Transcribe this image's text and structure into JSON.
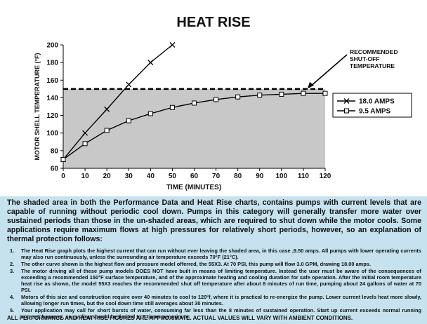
{
  "chart_data": {
    "type": "line",
    "title": "HEAT RISE",
    "xlabel": "TIME (MINUTES)",
    "ylabel": "MOTOR SHELL TEMPERATURE (°F)",
    "xlim": [
      0,
      120
    ],
    "ylim": [
      60,
      200
    ],
    "x_ticks": [
      "0",
      "10",
      "20",
      "30",
      "40",
      "50",
      "60",
      "70",
      "80",
      "90",
      "100",
      "110",
      "120"
    ],
    "y_ticks": [
      "60",
      "80",
      "100",
      "120",
      "140",
      "160",
      "180",
      "200"
    ],
    "legend_position": "right",
    "shaded_below": 150,
    "shade_color": "#c8c8c8",
    "series": [
      {
        "name": "18.0 AMPS",
        "marker": "x",
        "x": [
          0,
          10,
          20,
          30,
          40,
          50
        ],
        "y": [
          70,
          100,
          127,
          155,
          180,
          200
        ]
      },
      {
        "name": "9.5 AMPS",
        "marker": "square",
        "x": [
          0,
          10,
          20,
          30,
          40,
          50,
          60,
          70,
          80,
          90,
          100,
          110,
          120
        ],
        "y": [
          70,
          88,
          103,
          114,
          122,
          129,
          134,
          138,
          141,
          143,
          144,
          145,
          145
        ]
      }
    ],
    "reference_line": {
      "value": 150,
      "label": "RECOMMENDED SHUT-OFF TEMPERATURE",
      "label_lines": [
        "RECOMMENDED",
        "SHUT-OFF",
        "TEMPERATURE"
      ]
    }
  },
  "description": {
    "paragraph": "The shaded area in both the Performance Data and Heat Rise charts, contains pumps with current levels that are capable of running without periodic cool down.  Pumps in this category will generally transfer more water over sustained periods than those in the un-shaded areas, which are required to shut down while the motor cools.  Some applications require maximum flows at high pressures for relatively short periods, however, so an explanation of thermal protection follows:",
    "notes": [
      {
        "num": "1.",
        "text": "The Heat Rise graph plots the highest current that can run without ever leaving the shaded area, in this case ,9.50 amps.  All pumps with lower operating currents may also run continuously, unless the surrounding air temperature exceeds 70°F (21°C)."
      },
      {
        "num": "2.",
        "text": "The other curve shown is the highest flow and pressure model offerred, the 55X3.  At 70 PSI, this pump will flow 3.0 GPM, drawing 18.00 amps."
      },
      {
        "num": "3.",
        "text": "The motor driving all of these pump models DOES NOT have built in means of limiting temperature.  Instead the user must be aware of the consequences of exceeding a recommended 150°F surface temperature, and of the approximate heating and cooling duration for safe operation.  After the initial room temperature heat rise as shown, the model 55X3 reaches the recommended shut off temperature after about 8 minutes of run time, pumping about 24 gallons of water at 70 PSI."
      },
      {
        "num": "4.",
        "text": "Motors of this size and construction require over 40 minutes to cool to 120°f, where it is practical to re-energize the pump.  Lower current levels heat more slowly, allowing longer run times, but the cool down time still averages about 30 minutes."
      },
      {
        "num": "5.",
        "text": "Your application may call for short bursts of water, consuming far less than the 8 minutes of sustained operation.  Start up current exceeds normal running current, however, so cycling should be limited to 6 times per minute."
      }
    ],
    "footer": "ALL PERFORMANCE AND HEAT RISE FIGURES ARE APPROXIMATE.  ACTUAL VALUES WILL VARY WITH AMBIENT CONDITIONS."
  }
}
